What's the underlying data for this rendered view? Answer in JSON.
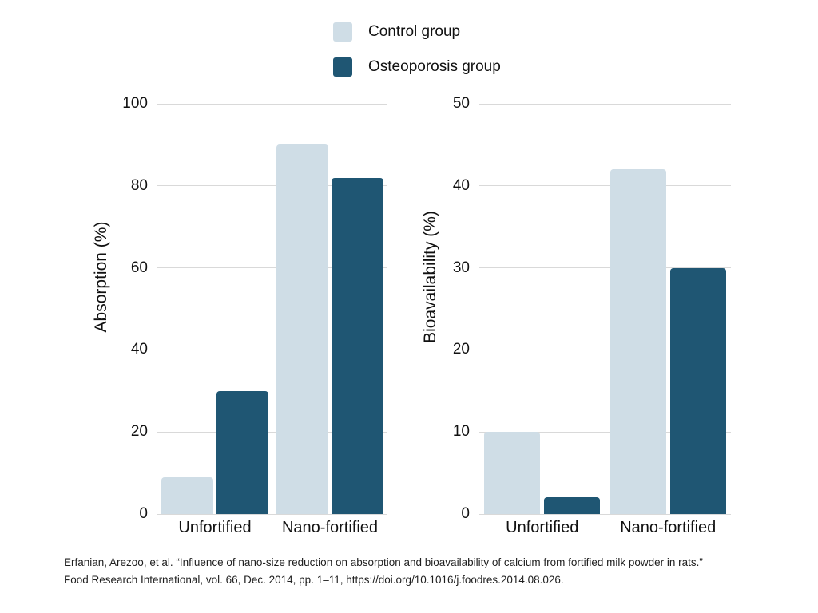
{
  "legend": {
    "items": [
      {
        "label": "Control group",
        "color": "#cfdde6"
      },
      {
        "label": "Osteoporosis group",
        "color": "#1f5673"
      }
    ]
  },
  "chart_data": [
    {
      "type": "bar",
      "title": "",
      "categories": [
        "Unfortified",
        "Nano-fortified"
      ],
      "series": [
        {
          "name": "Control group",
          "color": "#cfdde6",
          "values": [
            9,
            90
          ]
        },
        {
          "name": "Osteoporosis group",
          "color": "#1f5673",
          "values": [
            30,
            82
          ]
        }
      ],
      "xlabel": "",
      "ylabel": "Absorption (%)",
      "ylim": [
        0,
        100
      ],
      "yticks": [
        0,
        20,
        40,
        60,
        80,
        100
      ],
      "grid": true,
      "legend_position": "top-center-shared"
    },
    {
      "type": "bar",
      "title": "",
      "categories": [
        "Unfortified",
        "Nano-fortified"
      ],
      "series": [
        {
          "name": "Control group",
          "color": "#cfdde6",
          "values": [
            10,
            42
          ]
        },
        {
          "name": "Osteoporosis group",
          "color": "#1f5673",
          "values": [
            2,
            30
          ]
        }
      ],
      "xlabel": "",
      "ylabel": "Bioavailability (%)",
      "ylim": [
        0,
        50
      ],
      "yticks": [
        0,
        10,
        20,
        30,
        40,
        50
      ],
      "grid": true,
      "legend_position": "top-center-shared"
    }
  ],
  "citation": {
    "lines": [
      "Erfanian, Arezoo, et al. “Influence of nano-size reduction on absorption and bioavailability of calcium from fortified milk powder in rats.”",
      "Food Research International, vol. 66, Dec. 2014, pp. 1–11, https://doi.org/10.1016/j.foodres.2014.08.026."
    ]
  }
}
